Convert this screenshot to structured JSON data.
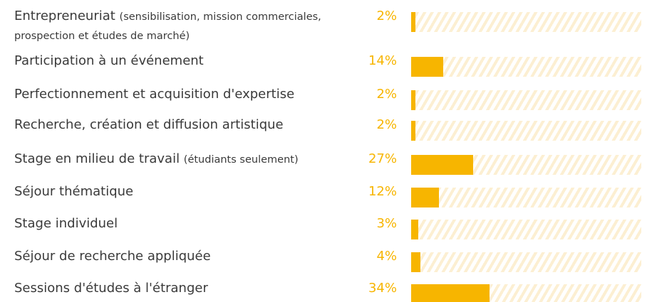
{
  "chart_data": {
    "type": "bar",
    "orientation": "horizontal",
    "categories": [
      "Entrepreneuriat (sensibilisation, mission commerciales, prospection et études de marché)",
      "Participation à un événement",
      "Perfectionnement et acquisition d'expertise",
      "Recherche, création et diffusion artistique",
      "Stage en milieu de travail (étudiants seulement)",
      "Séjour thématique",
      "Stage individuel",
      "Séjour de recherche appliquée",
      "Sessions d'études à l'étranger"
    ],
    "values": [
      2,
      14,
      2,
      2,
      27,
      12,
      3,
      4,
      34
    ],
    "value_labels": [
      "2%",
      "14%",
      "2%",
      "2%",
      "27%",
      "12%",
      "3%",
      "4%",
      "34%"
    ],
    "color": "#f7b500",
    "xlim": [
      0,
      100
    ]
  }
}
